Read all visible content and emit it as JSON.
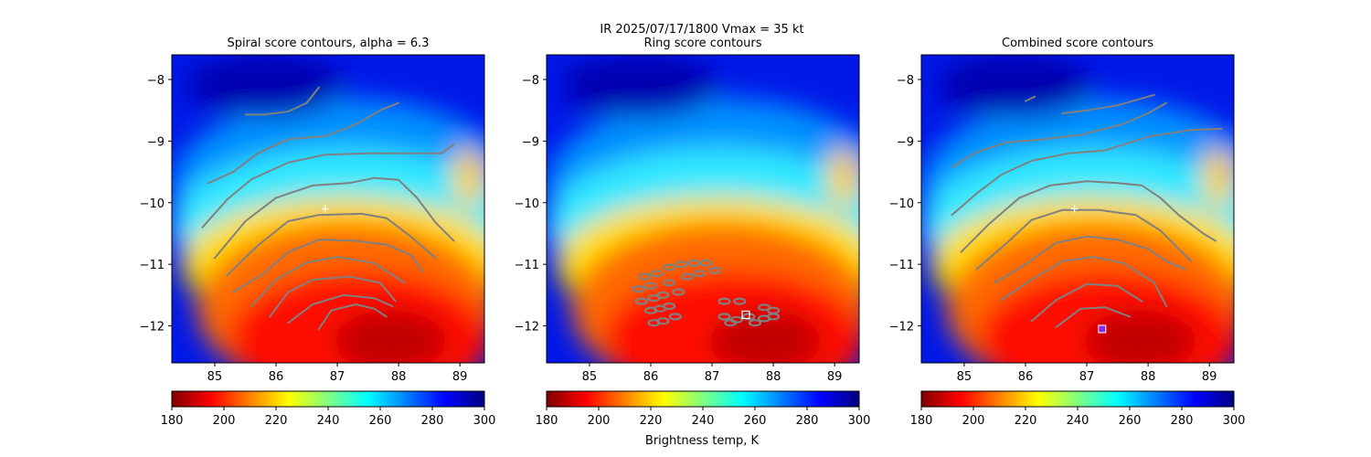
{
  "suptitle": {
    "line1": "IR  2025/07/17/1800    Vmax = 35 kt",
    "line2": "Ring score contours"
  },
  "colorbar_label": "Brightness temp, K",
  "colors": {
    "contour": "#808080",
    "center_marker": "#ffffff",
    "combined_marker": "#8a2be2",
    "colormap": [
      "#800000",
      "#ff0000",
      "#ff8000",
      "#ffff00",
      "#80ff80",
      "#00ffff",
      "#0080ff",
      "#0000ff",
      "#000080"
    ]
  },
  "chart_data": [
    {
      "type": "heatmap",
      "title": "Spiral score contours, alpha =  6.3",
      "xlim": [
        84.3,
        89.4
      ],
      "ylim": [
        -12.6,
        -7.6
      ],
      "xticks": [
        "85",
        "86",
        "87",
        "88",
        "89"
      ],
      "yticks": [
        "−8",
        "−9",
        "−10",
        "−11",
        "−12"
      ],
      "colorbar": {
        "range": [
          180,
          300
        ],
        "ticks": [
          "180",
          "200",
          "220",
          "240",
          "260",
          "280",
          "300"
        ]
      },
      "center_marker": {
        "lon": 86.8,
        "lat": -10.1,
        "symbol": "+"
      },
      "contours": [
        [
          [
            85.5,
            -8.57
          ],
          [
            85.8,
            -8.57
          ],
          [
            86.2,
            -8.52
          ],
          [
            86.5,
            -8.38
          ],
          [
            86.7,
            -8.13
          ]
        ],
        [
          [
            84.9,
            -9.68
          ],
          [
            85.3,
            -9.5
          ],
          [
            85.7,
            -9.2
          ],
          [
            86.2,
            -8.97
          ],
          [
            86.8,
            -8.92
          ],
          [
            87.3,
            -8.73
          ],
          [
            87.7,
            -8.5
          ],
          [
            88.0,
            -8.38
          ]
        ],
        [
          [
            84.8,
            -10.4
          ],
          [
            85.2,
            -9.95
          ],
          [
            85.6,
            -9.62
          ],
          [
            86.2,
            -9.35
          ],
          [
            86.8,
            -9.22
          ],
          [
            87.5,
            -9.2
          ],
          [
            88.2,
            -9.2
          ],
          [
            88.7,
            -9.2
          ],
          [
            88.9,
            -9.05
          ]
        ],
        [
          [
            85.0,
            -10.9
          ],
          [
            85.5,
            -10.3
          ],
          [
            86.0,
            -9.92
          ],
          [
            86.6,
            -9.72
          ],
          [
            87.2,
            -9.68
          ],
          [
            87.6,
            -9.6
          ],
          [
            88.0,
            -9.63
          ],
          [
            88.3,
            -9.92
          ],
          [
            88.6,
            -10.32
          ],
          [
            88.9,
            -10.62
          ]
        ],
        [
          [
            85.2,
            -11.18
          ],
          [
            85.7,
            -10.7
          ],
          [
            86.2,
            -10.3
          ],
          [
            86.7,
            -10.2
          ],
          [
            87.4,
            -10.18
          ],
          [
            87.8,
            -10.25
          ],
          [
            88.2,
            -10.55
          ],
          [
            88.6,
            -10.9
          ]
        ],
        [
          [
            85.3,
            -11.45
          ],
          [
            85.8,
            -11.15
          ],
          [
            86.2,
            -10.8
          ],
          [
            86.7,
            -10.6
          ],
          [
            87.3,
            -10.62
          ],
          [
            87.8,
            -10.68
          ],
          [
            88.2,
            -10.85
          ],
          [
            88.4,
            -11.12
          ]
        ],
        [
          [
            85.6,
            -11.68
          ],
          [
            86.0,
            -11.25
          ],
          [
            86.5,
            -10.97
          ],
          [
            87.0,
            -10.88
          ],
          [
            87.6,
            -10.98
          ],
          [
            88.1,
            -11.3
          ]
        ],
        [
          [
            85.9,
            -11.85
          ],
          [
            86.2,
            -11.45
          ],
          [
            86.6,
            -11.25
          ],
          [
            87.2,
            -11.2
          ],
          [
            87.7,
            -11.3
          ],
          [
            87.95,
            -11.6
          ]
        ],
        [
          [
            86.2,
            -11.95
          ],
          [
            86.6,
            -11.65
          ],
          [
            87.1,
            -11.5
          ],
          [
            87.6,
            -11.55
          ],
          [
            87.9,
            -11.68
          ]
        ],
        [
          [
            86.7,
            -12.05
          ],
          [
            86.9,
            -11.75
          ],
          [
            87.3,
            -11.65
          ],
          [
            87.6,
            -11.72
          ],
          [
            87.8,
            -11.85
          ]
        ]
      ]
    },
    {
      "type": "heatmap",
      "title": "Ring score contours",
      "xlim": [
        84.3,
        89.4
      ],
      "ylim": [
        -12.6,
        -7.6
      ],
      "xticks": [
        "85",
        "86",
        "87",
        "88",
        "89"
      ],
      "yticks": [
        "−8",
        "−9",
        "−10",
        "−11",
        "−12"
      ],
      "colorbar": {
        "range": [
          180,
          300
        ],
        "ticks": [
          "180",
          "200",
          "220",
          "240",
          "260",
          "280",
          "300"
        ]
      },
      "center_marker": {
        "lon": 87.55,
        "lat": -11.82,
        "symbol": "square"
      },
      "contour_blobs": [
        [
          85.9,
          -11.2
        ],
        [
          86.1,
          -11.15
        ],
        [
          86.3,
          -11.05
        ],
        [
          86.5,
          -11.0
        ],
        [
          86.7,
          -10.98
        ],
        [
          86.9,
          -10.98
        ],
        [
          85.8,
          -11.4
        ],
        [
          86.0,
          -11.35
        ],
        [
          86.3,
          -11.3
        ],
        [
          86.6,
          -11.2
        ],
        [
          86.8,
          -11.15
        ],
        [
          87.05,
          -11.1
        ],
        [
          85.85,
          -11.6
        ],
        [
          86.05,
          -11.55
        ],
        [
          86.2,
          -11.5
        ],
        [
          86.45,
          -11.45
        ],
        [
          86.0,
          -11.75
        ],
        [
          86.15,
          -11.72
        ],
        [
          86.3,
          -11.68
        ],
        [
          86.05,
          -11.95
        ],
        [
          86.2,
          -11.92
        ],
        [
          86.4,
          -11.85
        ],
        [
          87.2,
          -11.6
        ],
        [
          87.45,
          -11.6
        ],
        [
          87.85,
          -11.7
        ],
        [
          88.0,
          -11.75
        ],
        [
          87.2,
          -11.85
        ],
        [
          87.4,
          -11.9
        ],
        [
          87.6,
          -11.85
        ],
        [
          87.85,
          -11.88
        ],
        [
          88.0,
          -11.85
        ],
        [
          87.7,
          -11.95
        ],
        [
          87.3,
          -11.95
        ]
      ]
    },
    {
      "type": "heatmap",
      "title": "Combined score contours",
      "xlim": [
        84.3,
        89.4
      ],
      "ylim": [
        -12.6,
        -7.6
      ],
      "xticks": [
        "85",
        "86",
        "87",
        "88",
        "89"
      ],
      "yticks": [
        "−8",
        "−9",
        "−10",
        "−11",
        "−12"
      ],
      "colorbar": {
        "range": [
          180,
          300
        ],
        "ticks": [
          "180",
          "200",
          "220",
          "240",
          "260",
          "280",
          "300"
        ]
      },
      "center_marker": {
        "lon": 86.8,
        "lat": -10.1,
        "symbol": "+"
      },
      "combined_marker": {
        "lon": 87.25,
        "lat": -12.05,
        "symbol": "square"
      },
      "contours": [
        [
          [
            86.0,
            -8.35
          ],
          [
            86.15,
            -8.28
          ]
        ],
        [
          [
            86.6,
            -8.55
          ],
          [
            87.0,
            -8.5
          ],
          [
            87.5,
            -8.42
          ],
          [
            88.1,
            -8.25
          ]
        ],
        [
          [
            84.8,
            -9.42
          ],
          [
            85.2,
            -9.18
          ],
          [
            85.7,
            -9.02
          ],
          [
            86.3,
            -8.97
          ],
          [
            86.9,
            -8.9
          ],
          [
            87.6,
            -8.72
          ],
          [
            88.0,
            -8.55
          ],
          [
            88.3,
            -8.38
          ]
        ],
        [
          [
            84.8,
            -10.2
          ],
          [
            85.2,
            -9.85
          ],
          [
            85.6,
            -9.55
          ],
          [
            86.1,
            -9.32
          ],
          [
            86.7,
            -9.2
          ],
          [
            87.3,
            -9.15
          ],
          [
            88.0,
            -8.93
          ],
          [
            88.7,
            -8.82
          ],
          [
            89.2,
            -8.8
          ]
        ],
        [
          [
            84.95,
            -10.8
          ],
          [
            85.4,
            -10.35
          ],
          [
            85.9,
            -9.92
          ],
          [
            86.4,
            -9.72
          ],
          [
            87.0,
            -9.65
          ],
          [
            87.5,
            -9.68
          ],
          [
            87.9,
            -9.72
          ],
          [
            88.2,
            -9.92
          ],
          [
            88.5,
            -10.2
          ],
          [
            88.9,
            -10.5
          ],
          [
            89.1,
            -10.62
          ]
        ],
        [
          [
            85.2,
            -11.08
          ],
          [
            85.7,
            -10.65
          ],
          [
            86.1,
            -10.28
          ],
          [
            86.6,
            -10.12
          ],
          [
            87.2,
            -10.12
          ],
          [
            87.8,
            -10.2
          ],
          [
            88.2,
            -10.45
          ],
          [
            88.5,
            -10.75
          ],
          [
            88.7,
            -10.95
          ]
        ],
        [
          [
            85.5,
            -11.3
          ],
          [
            86.0,
            -11.0
          ],
          [
            86.5,
            -10.65
          ],
          [
            87.0,
            -10.55
          ],
          [
            87.5,
            -10.6
          ],
          [
            88.0,
            -10.75
          ],
          [
            88.3,
            -10.95
          ],
          [
            88.6,
            -11.08
          ]
        ],
        [
          [
            85.6,
            -11.58
          ],
          [
            86.1,
            -11.25
          ],
          [
            86.6,
            -10.95
          ],
          [
            87.1,
            -10.88
          ],
          [
            87.6,
            -10.98
          ],
          [
            88.1,
            -11.3
          ],
          [
            88.3,
            -11.68
          ]
        ],
        [
          [
            86.1,
            -11.92
          ],
          [
            86.5,
            -11.58
          ],
          [
            87.0,
            -11.32
          ],
          [
            87.5,
            -11.35
          ],
          [
            87.9,
            -11.6
          ]
        ],
        [
          [
            86.5,
            -12.02
          ],
          [
            86.9,
            -11.72
          ],
          [
            87.3,
            -11.7
          ],
          [
            87.7,
            -11.85
          ]
        ]
      ]
    }
  ]
}
